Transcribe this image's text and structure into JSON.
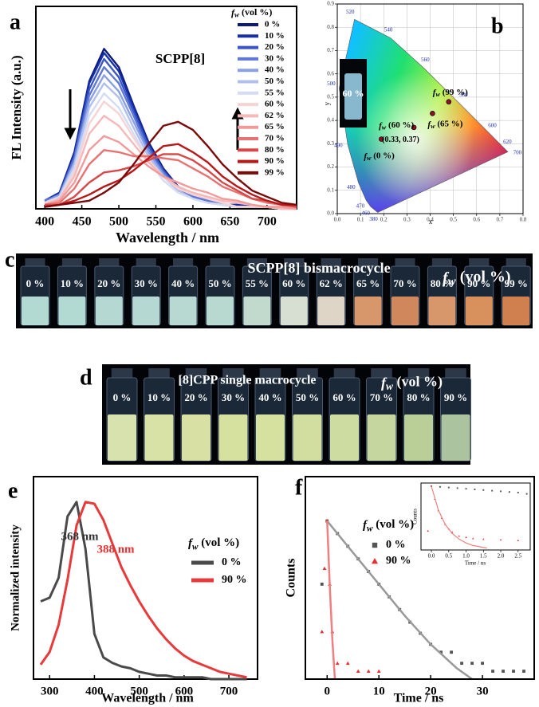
{
  "chart_data": [
    {
      "type": "line",
      "panel": "a",
      "title": "SCPP[8]",
      "xlabel": "Wavelength / nm",
      "ylabel": "FL Intensity (a.u.)",
      "legend_title": "fw (vol %)",
      "x": [
        400,
        420,
        440,
        460,
        480,
        500,
        520,
        540,
        560,
        580,
        600,
        620,
        640,
        660,
        680,
        700,
        720,
        740
      ],
      "xlim": [
        388,
        740
      ],
      "xticks": [
        400,
        450,
        500,
        550,
        600,
        650,
        700
      ],
      "ylim": [
        0,
        100
      ],
      "series": [
        {
          "name": "0 %",
          "color": "#0b1a7a",
          "values": [
            4,
            8,
            28,
            63,
            79,
            70,
            51,
            33,
            20,
            11,
            6,
            4,
            2,
            2,
            1,
            1,
            0,
            0
          ]
        },
        {
          "name": "10 %",
          "color": "#1530a8",
          "values": [
            4,
            8,
            27,
            62,
            77,
            68,
            50,
            32,
            19,
            11,
            6,
            4,
            2,
            2,
            1,
            1,
            0,
            0
          ]
        },
        {
          "name": "20 %",
          "color": "#3a55c8",
          "values": [
            4,
            7,
            26,
            59,
            74,
            65,
            48,
            31,
            19,
            10,
            6,
            4,
            2,
            1,
            1,
            1,
            0,
            0
          ]
        },
        {
          "name": "30 %",
          "color": "#5f78d8",
          "values": [
            4,
            7,
            25,
            56,
            70,
            62,
            46,
            29,
            18,
            10,
            6,
            4,
            2,
            1,
            1,
            1,
            0,
            0
          ]
        },
        {
          "name": "40 %",
          "color": "#8aa0e4",
          "values": [
            3,
            7,
            23,
            53,
            66,
            58,
            43,
            28,
            17,
            9,
            5,
            3,
            2,
            1,
            1,
            1,
            0,
            0
          ]
        },
        {
          "name": "50 %",
          "color": "#b0c0ee",
          "values": [
            3,
            6,
            22,
            50,
            62,
            55,
            40,
            26,
            16,
            9,
            5,
            3,
            2,
            1,
            1,
            1,
            0,
            0
          ]
        },
        {
          "name": "55 %",
          "color": "#d4dcf4",
          "values": [
            3,
            6,
            20,
            46,
            57,
            50,
            37,
            24,
            14,
            8,
            5,
            3,
            2,
            1,
            1,
            1,
            0,
            0
          ]
        },
        {
          "name": "60 %",
          "color": "#f4d4d4",
          "values": [
            3,
            5,
            18,
            42,
            53,
            47,
            35,
            24,
            16,
            10,
            7,
            5,
            3,
            1,
            1,
            1,
            0,
            0
          ]
        },
        {
          "name": "62 %",
          "color": "#f6b8b8",
          "values": [
            2,
            5,
            16,
            37,
            46,
            41,
            32,
            23,
            16,
            11,
            8,
            6,
            4,
            3,
            2,
            1,
            0,
            0
          ]
        },
        {
          "name": "65 %",
          "color": "#f29a9a",
          "values": [
            2,
            4,
            13,
            29,
            36,
            33,
            27,
            21,
            16,
            13,
            10,
            8,
            5,
            4,
            2,
            1,
            1,
            0
          ]
        },
        {
          "name": "70 %",
          "color": "#e87272",
          "values": [
            2,
            3,
            10,
            22,
            29,
            28,
            26,
            26,
            25,
            24,
            20,
            16,
            11,
            8,
            5,
            3,
            2,
            1
          ]
        },
        {
          "name": "80 %",
          "color": "#d84848",
          "values": [
            2,
            2,
            6,
            13,
            18,
            19,
            21,
            24,
            27,
            27,
            24,
            19,
            13,
            9,
            5,
            4,
            2,
            1
          ]
        },
        {
          "name": "90 %",
          "color": "#b81818",
          "values": [
            1,
            2,
            4,
            7,
            11,
            14,
            19,
            25,
            31,
            32,
            28,
            23,
            16,
            11,
            7,
            4,
            2,
            2
          ]
        },
        {
          "name": "99 %",
          "color": "#7a0a0a",
          "values": [
            1,
            2,
            3,
            4,
            8,
            13,
            22,
            32,
            41,
            43,
            39,
            31,
            22,
            15,
            9,
            6,
            3,
            2
          ]
        }
      ]
    },
    {
      "type": "cie",
      "panel": "b",
      "xlabel": "x",
      "ylabel": "y",
      "grid": true,
      "xlim": [
        0,
        0.8
      ],
      "ylim": [
        0,
        0.9
      ],
      "xticks": [
        {
          "value": 0,
          "label": "0.0"
        },
        {
          "value": 0.1,
          "label": "0.1"
        },
        {
          "value": 0.2,
          "label": "0.2"
        },
        {
          "value": 0.3,
          "label": "0.3"
        },
        {
          "value": 0.4,
          "label": "0.4"
        },
        {
          "value": 0.5,
          "label": "0.5"
        },
        {
          "value": 0.6,
          "label": "0.6"
        },
        {
          "value": 0.7,
          "label": "0.7"
        },
        {
          "value": 0.8,
          "label": "0.8"
        }
      ],
      "yticks": [
        {
          "value": 0,
          "label": "0.0"
        },
        {
          "value": 0.1,
          "label": "0.1"
        },
        {
          "value": 0.2,
          "label": "0.2"
        },
        {
          "value": 0.3,
          "label": "0.3"
        },
        {
          "value": 0.4,
          "label": "0.4"
        },
        {
          "value": 0.5,
          "label": "0.5"
        },
        {
          "value": 0.6,
          "label": "0.6"
        },
        {
          "value": 0.7,
          "label": "0.7"
        },
        {
          "value": 0.8,
          "label": "0.8"
        },
        {
          "value": 0.9,
          "label": "0.9"
        }
      ],
      "locus_labels": [
        "380",
        "460",
        "470",
        "480",
        "490",
        "500",
        "520",
        "540",
        "560",
        "580",
        "600",
        "620",
        "700"
      ],
      "locus_x": [
        0.1741,
        0.144,
        0.1241,
        0.0913,
        0.0454,
        0.0082,
        0.0743,
        0.2296,
        0.3731,
        0.5125,
        0.627,
        0.6915,
        0.7347
      ],
      "locus_y": [
        0.005,
        0.0297,
        0.0578,
        0.1327,
        0.295,
        0.5384,
        0.8338,
        0.7543,
        0.6245,
        0.4866,
        0.3725,
        0.3083,
        0.2653
      ],
      "point_labels": [
        "fw (0 %)",
        "fw (60 %)",
        "fw (65 %)",
        "fw (99 %)"
      ],
      "x": [
        0.19,
        0.33,
        0.41,
        0.48
      ],
      "values": [
        0.32,
        0.37,
        0.43,
        0.48
      ],
      "color": "#8b1020",
      "annotation": "(0.33, 0.37)",
      "inset_label": "60 %"
    },
    {
      "type": "line",
      "panel": "e",
      "xlabel": "Wavelength / nm",
      "ylabel": "Normalized intensity",
      "legend_title": "fw (vol %)",
      "annotations": [
        "368 nm",
        "388 nm"
      ],
      "annotation_colors": [
        "#333333",
        "#e83030"
      ],
      "x": [
        280,
        300,
        320,
        340,
        360,
        380,
        400,
        420,
        440,
        460,
        480,
        500,
        520,
        540,
        560,
        580,
        600,
        620,
        640,
        660,
        680,
        700,
        720,
        740
      ],
      "xlim": [
        264,
        764
      ],
      "xticks": [
        300,
        400,
        500,
        600,
        700
      ],
      "ylim": [
        0,
        1.12
      ],
      "series": [
        {
          "name": "0 %",
          "color": "#4a4a4a",
          "values": [
            0.43,
            0.45,
            0.56,
            0.9,
            0.98,
            0.72,
            0.25,
            0.12,
            0.09,
            0.07,
            0.06,
            0.04,
            0.03,
            0.02,
            0.02,
            0.01,
            0.01,
            0.01,
            0.01,
            0,
            0,
            0,
            0,
            0
          ]
        },
        {
          "name": "90 %",
          "color": "#e83a3a",
          "values": [
            0.08,
            0.15,
            0.3,
            0.55,
            0.85,
            0.98,
            0.97,
            0.88,
            0.75,
            0.62,
            0.52,
            0.43,
            0.35,
            0.28,
            0.22,
            0.17,
            0.13,
            0.1,
            0.08,
            0.06,
            0.04,
            0.03,
            0.02,
            0.01
          ]
        }
      ]
    },
    {
      "type": "scatter",
      "panel": "f",
      "xlabel": "Time / ns",
      "ylabel": "Counts",
      "legend_title": "fw (vol %)",
      "xlim": [
        -4.2,
        40
      ],
      "xticks": [
        0,
        10,
        20,
        30
      ],
      "ylim": [
        0,
        1.28
      ],
      "series": [
        {
          "name": "0 %",
          "color": "#555555",
          "marker": "square",
          "x": [
            -1,
            0,
            2,
            4,
            6,
            8,
            10,
            12,
            14,
            16,
            18,
            20,
            22,
            24,
            26,
            28,
            30,
            32,
            34,
            36,
            38
          ],
          "values": [
            0.6,
            1.0,
            0.92,
            0.84,
            0.76,
            0.68,
            0.6,
            0.52,
            0.44,
            0.36,
            0.29,
            0.22,
            0.17,
            0.17,
            0.1,
            0.1,
            0.1,
            0.05,
            0.05,
            0.05,
            0.05
          ]
        },
        {
          "name": "90 %",
          "color": "#e83030",
          "marker": "triangle",
          "x": [
            -1,
            -0.5,
            0,
            0.5,
            1,
            2,
            4,
            6,
            8,
            10
          ],
          "values": [
            0.3,
            0.7,
            1.0,
            0.6,
            0.3,
            0.1,
            0.1,
            0.05,
            0.05,
            0.05
          ]
        }
      ],
      "fits": [
        {
          "color": "#999999",
          "x": [
            0,
            5,
            10,
            15,
            20,
            25,
            28
          ],
          "values": [
            1.0,
            0.8,
            0.6,
            0.4,
            0.22,
            0.07,
            0
          ]
        },
        {
          "color": "#f08080",
          "x": [
            0,
            0.5,
            1,
            1.5
          ],
          "values": [
            1.0,
            0.6,
            0.25,
            0
          ]
        }
      ]
    },
    {
      "type": "scatter",
      "xlabel": "Time / ns",
      "ylabel": "Counts",
      "xlim": [
        -0.3,
        2.85
      ],
      "ylim": [
        0,
        1.05
      ],
      "xticks": [
        {
          "value": 0,
          "label": "0.0"
        },
        {
          "value": 0.5,
          "label": "0.5"
        },
        {
          "value": 1,
          "label": "1.0"
        },
        {
          "value": 1.5,
          "label": "1.5"
        },
        {
          "value": 2,
          "label": "2.0"
        },
        {
          "value": 2.5,
          "label": "2.5"
        }
      ],
      "series": [
        {
          "color": "#555555",
          "marker": "square",
          "x": [
            0,
            0.25,
            0.5,
            0.75,
            1,
            1.25,
            1.5,
            1.75,
            2,
            2.25,
            2.5,
            2.75
          ],
          "values": [
            1.0,
            0.99,
            0.98,
            0.97,
            0.96,
            0.95,
            0.94,
            0.93,
            0.92,
            0.91,
            0.9,
            0.88
          ]
        },
        {
          "color": "#e83030",
          "marker": "triangle",
          "x": [
            -0.1,
            0,
            0.1,
            0.2,
            0.3,
            0.4,
            0.5,
            0.6,
            0.8,
            1,
            1.2,
            1.5,
            2,
            2.5
          ],
          "values": [
            0.3,
            1.0,
            0.8,
            0.62,
            0.5,
            0.4,
            0.33,
            0.28,
            0.22,
            0.2,
            0.18,
            0.17,
            0.16,
            0.15
          ]
        }
      ],
      "fits": [
        {
          "color": "#f08080",
          "x": [
            0,
            0.2,
            0.4,
            0.6,
            0.8,
            1,
            1.2,
            1.4,
            1.6
          ],
          "values": [
            1.0,
            0.63,
            0.4,
            0.26,
            0.17,
            0.11,
            0.07,
            0.05,
            0.03
          ]
        }
      ]
    }
  ],
  "photos": [
    {
      "panel": "c",
      "caption": "SCPP[8] bismacrocycle",
      "legend": "fw (vol %)",
      "labels": [
        "0 %",
        "10 %",
        "20 %",
        "30 %",
        "40 %",
        "50 %",
        "55 %",
        "60 %",
        "62 %",
        "65 %",
        "70 %",
        "80 %",
        "90 %",
        "99 %"
      ],
      "colors": [
        "#bfe8e0",
        "#bfe8e0",
        "#c2e8df",
        "#c2e8df",
        "#c4e8de",
        "#c6e8dc",
        "#cfe9da",
        "#e6efe0",
        "#f0e4d4",
        "#e8a070",
        "#e08f60",
        "#e8a070",
        "#e89a60",
        "#e08850"
      ]
    },
    {
      "panel": "d",
      "caption": "[8]CPP single macrocycle",
      "legend": "fw (vol %)",
      "labels": [
        "0 %",
        "10 %",
        "20 %",
        "30 %",
        "40 %",
        "50 %",
        "60 %",
        "70 %",
        "80 %",
        "90 %"
      ],
      "colors": [
        "#e8f2b8",
        "#e8f2b0",
        "#e8f0ac",
        "#e6f0a8",
        "#e6f0a8",
        "#e2eea8",
        "#dcecaa",
        "#d4e6a8",
        "#c8dca0",
        "#b8d0a8"
      ]
    }
  ]
}
